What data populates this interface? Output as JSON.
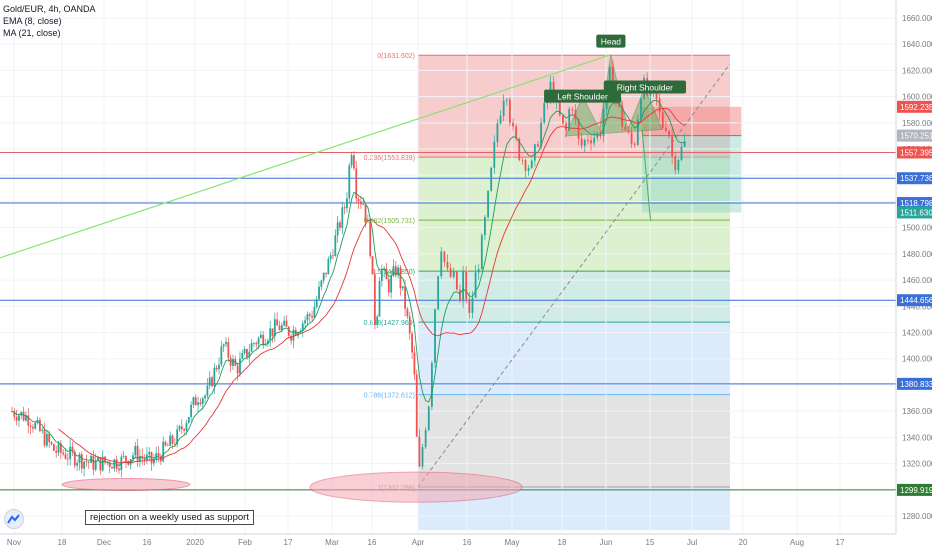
{
  "legend": {
    "symbol": "Gold/EUR, 4h, OANDA",
    "ema": "EMA (8, close)",
    "ma": "MA (21, close)"
  },
  "colors": {
    "up": "#26a69a",
    "down": "#ef5350",
    "ema": "#1e9e5a",
    "ma": "#e53935",
    "trendline": "#8be07a",
    "support_blue": "#3a6fd8",
    "support_green": "#2e7d32",
    "fib_236": "#e06666"
  },
  "chart_data": {
    "type": "candlestick",
    "symbol": "Gold/EUR",
    "timeframe": "4h",
    "ylim": [
      1270,
      1670
    ],
    "y_ticks": [
      1280,
      1300,
      1320,
      1340,
      1360,
      1380,
      1400,
      1420,
      1440,
      1460,
      1480,
      1500,
      1520,
      1540,
      1560,
      1580,
      1600,
      1620,
      1640,
      1660
    ],
    "x_ticks": [
      "Nov",
      "18",
      "Dec",
      "16",
      "2020",
      "Feb",
      "17",
      "Mar",
      "16",
      "Apr",
      "16",
      "May",
      "18",
      "Jun",
      "15",
      "Jul",
      "20",
      "Aug",
      "17"
    ],
    "price_path": [
      [
        0,
        1360
      ],
      [
        4,
        1355
      ],
      [
        10,
        1330
      ],
      [
        15,
        1325
      ],
      [
        19,
        1320
      ],
      [
        26,
        1322
      ],
      [
        29,
        1328
      ],
      [
        33,
        1321
      ],
      [
        39,
        1340
      ],
      [
        44,
        1372
      ],
      [
        46,
        1372
      ],
      [
        47,
        1382
      ],
      [
        50,
        1410
      ],
      [
        53,
        1392
      ],
      [
        57,
        1412
      ],
      [
        63,
        1425
      ],
      [
        66,
        1420
      ],
      [
        71,
        1435
      ],
      [
        75,
        1475
      ],
      [
        79,
        1520
      ],
      [
        80,
        1555
      ],
      [
        80.5,
        1565
      ],
      [
        81.5,
        1525
      ],
      [
        83,
        1520
      ],
      [
        84.5,
        1495
      ],
      [
        86,
        1420
      ],
      [
        87,
        1470
      ],
      [
        89,
        1455
      ],
      [
        91,
        1470
      ],
      [
        93,
        1440
      ],
      [
        95,
        1395
      ],
      [
        95.5,
        1360
      ],
      [
        96,
        1305
      ],
      [
        97,
        1340
      ],
      [
        98,
        1370
      ],
      [
        99,
        1440
      ],
      [
        100,
        1490
      ],
      [
        101,
        1465
      ],
      [
        102.5,
        1460
      ],
      [
        103.5,
        1440
      ],
      [
        104,
        1465
      ],
      [
        105,
        1430
      ],
      [
        106,
        1460
      ],
      [
        107,
        1480
      ],
      [
        108,
        1510
      ],
      [
        109,
        1545
      ],
      [
        110,
        1580
      ],
      [
        111.5,
        1610
      ],
      [
        112.5,
        1575
      ],
      [
        114,
        1555
      ],
      [
        116,
        1545
      ],
      [
        118,
        1585
      ],
      [
        119.5,
        1610
      ],
      [
        120.5,
        1590
      ],
      [
        122,
        1570
      ],
      [
        123,
        1600
      ],
      [
        124.5,
        1560
      ],
      [
        126,
        1570
      ],
      [
        128,
        1570
      ],
      [
        129,
        1600
      ],
      [
        130,
        1620
      ],
      [
        130.8,
        1600
      ],
      [
        132,
        1580
      ],
      [
        134,
        1560
      ],
      [
        135.5,
        1612
      ],
      [
        136.5,
        1600
      ],
      [
        138,
        1597
      ],
      [
        139,
        1578
      ],
      [
        140,
        1580
      ],
      [
        141,
        1548
      ],
      [
        142.5,
        1560
      ],
      [
        143.5,
        1568
      ]
    ],
    "series": [
      {
        "name": "EMA (8, close)"
      },
      {
        "name": "MA (21, close)"
      }
    ],
    "price_labels": [
      {
        "value": 1592.235,
        "label": "1592.235",
        "color": "#ef5350"
      },
      {
        "value": 1570.251,
        "label": "1570.251",
        "color": "#b2b5be"
      },
      {
        "value": 1557.395,
        "label": "1557.395",
        "color": "#ef5350"
      },
      {
        "value": 1537.736,
        "label": "1537.736",
        "color": "#3a6fd8"
      },
      {
        "value": 1518.798,
        "label": "1518.798",
        "color": "#3a6fd8"
      },
      {
        "value": 1511.63,
        "label": "1511.630",
        "color": "#26a69a"
      },
      {
        "value": 1444.656,
        "label": "1444.656",
        "color": "#3a6fd8"
      },
      {
        "value": 1380.833,
        "label": "1380.833",
        "color": "#3a6fd8"
      },
      {
        "value": 1299.919,
        "label": "1299.919",
        "color": "#2e7d32"
      }
    ],
    "horizontal_levels": [
      {
        "value": 1557.395,
        "color": "#e06666"
      },
      {
        "value": 1537.736,
        "color": "#3a6fd8"
      },
      {
        "value": 1518.798,
        "color": "#3a6fd8"
      },
      {
        "value": 1444.656,
        "color": "#3a6fd8"
      },
      {
        "value": 1380.833,
        "color": "#3a6fd8"
      },
      {
        "value": 1299.919,
        "color": "#2e7d32"
      }
    ],
    "fibonacci": {
      "start_x": 96,
      "end_x": 151,
      "levels": [
        {
          "ratio": "0",
          "value": 1631.602,
          "label": "0(1631.602)",
          "fill": "#f6c3c3",
          "line": "#e57373"
        },
        {
          "ratio": "0.236",
          "value": 1553.839,
          "label": "0.236(1553.839)",
          "fill": "#d7efc9",
          "line": "#e57373"
        },
        {
          "ratio": "0.382",
          "value": 1505.731,
          "label": "0.382(1505.731)",
          "fill": "#d7efc9",
          "line": "#7cb342"
        },
        {
          "ratio": "0.5",
          "value": 1466.85,
          "label": "0.5(1466.850)",
          "fill": "#c9e9e0",
          "line": "#43a047"
        },
        {
          "ratio": "0.618",
          "value": 1427.969,
          "label": "0.618(1427.969)",
          "fill": "#d6e8fa",
          "line": "#26a69a"
        },
        {
          "ratio": "0.786",
          "value": 1372.612,
          "label": "0.786(1372.612)",
          "fill": "#dedede",
          "line": "#64b5f6"
        },
        {
          "ratio": "1",
          "value": 1302.098,
          "label": "1(1302.098)",
          "fill": "#d6e8fa",
          "line": "#9e9e9e"
        }
      ]
    },
    "position_tool": {
      "x_start": 135.5,
      "x_end": 153,
      "stop": 1592.235,
      "entry": 1570.251,
      "target": 1511.63
    },
    "annotations": [
      {
        "text": "Head",
        "x": 130,
        "y": 1642
      },
      {
        "text": "Left Shoulder",
        "x": 125,
        "y": 1600
      },
      {
        "text": "Right Shoulder",
        "x": 136,
        "y": 1607
      }
    ],
    "note": "rejection on a weekly used as support"
  }
}
